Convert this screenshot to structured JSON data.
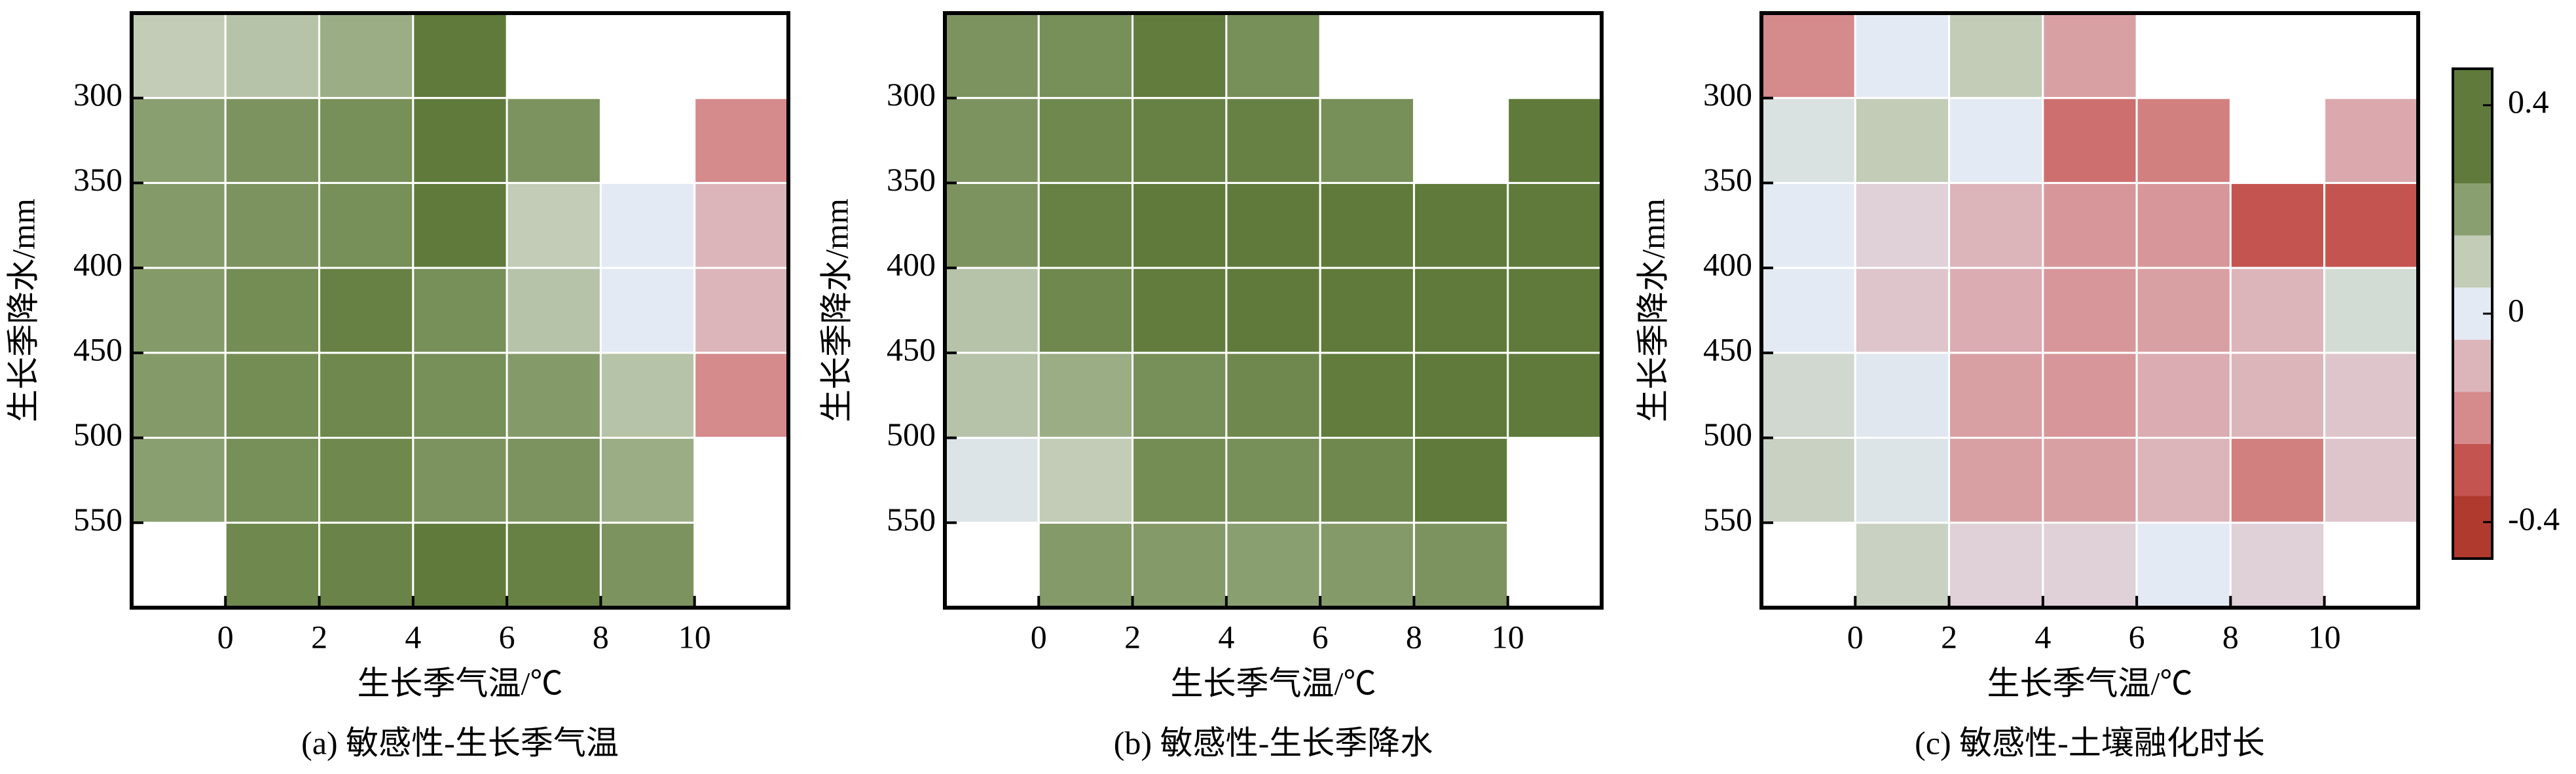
{
  "chart_data": [
    {
      "type": "heatmap",
      "title": "(a) 敏感性-生长季气温",
      "xlabel": "生长季气温/℃",
      "ylabel": "生长季降水/mm",
      "xbins": [
        -2,
        0,
        2,
        4,
        6,
        8,
        10,
        12
      ],
      "ybins": [
        250,
        300,
        350,
        400,
        450,
        500,
        550,
        600
      ],
      "xlim": [
        -2,
        12
      ],
      "ylim": [
        250,
        600
      ],
      "y_inverted": true,
      "xticks": [
        0,
        2,
        4,
        6,
        8,
        10
      ],
      "yticks": [
        300,
        350,
        400,
        450,
        500,
        550
      ],
      "values": [
        [
          0.1,
          0.12,
          0.17,
          0.4,
          null,
          null,
          null
        ],
        [
          0.2,
          0.25,
          0.27,
          0.4,
          0.25,
          null,
          -0.2
        ],
        [
          0.22,
          0.25,
          0.27,
          0.38,
          0.1,
          0.0,
          -0.1
        ],
        [
          0.22,
          0.28,
          0.33,
          0.27,
          0.12,
          0.0,
          -0.1
        ],
        [
          0.22,
          0.28,
          0.3,
          0.27,
          0.22,
          0.12,
          -0.2
        ],
        [
          0.2,
          0.27,
          0.3,
          0.25,
          0.25,
          0.17,
          null
        ],
        [
          null,
          0.3,
          0.32,
          0.38,
          0.33,
          0.25,
          null
        ]
      ]
    },
    {
      "type": "heatmap",
      "title": "(b) 敏感性-生长季降水",
      "xlabel": "生长季气温/℃",
      "ylabel": "生长季降水/mm",
      "xbins": [
        -2,
        0,
        2,
        4,
        6,
        8,
        10,
        12
      ],
      "ybins": [
        250,
        300,
        350,
        400,
        450,
        500,
        550,
        600
      ],
      "xlim": [
        -2,
        12
      ],
      "ylim": [
        250,
        600
      ],
      "y_inverted": true,
      "xticks": [
        0,
        2,
        4,
        6,
        8,
        10
      ],
      "yticks": [
        300,
        350,
        400,
        450,
        500,
        550
      ],
      "values": [
        [
          0.25,
          0.27,
          0.35,
          0.27,
          null,
          null,
          null
        ],
        [
          0.25,
          0.3,
          0.33,
          0.33,
          0.27,
          null,
          0.4
        ],
        [
          0.25,
          0.33,
          0.38,
          0.38,
          0.37,
          0.38,
          0.4
        ],
        [
          0.12,
          0.3,
          0.35,
          0.37,
          0.37,
          0.38,
          0.4
        ],
        [
          0.12,
          0.17,
          0.27,
          0.3,
          0.35,
          0.38,
          0.4
        ],
        [
          0.02,
          0.1,
          0.28,
          0.27,
          0.3,
          0.4,
          null
        ],
        [
          null,
          0.22,
          0.22,
          0.2,
          0.22,
          0.25,
          null
        ]
      ]
    },
    {
      "type": "heatmap",
      "title": "(c) 敏感性-土壤融化时长",
      "xlabel": "生长季气温/℃",
      "ylabel": "生长季降水/mm",
      "xbins": [
        -2,
        0,
        2,
        4,
        6,
        8,
        10,
        12
      ],
      "ybins": [
        250,
        300,
        350,
        400,
        450,
        500,
        550,
        600
      ],
      "xlim": [
        -2,
        12
      ],
      "ylim": [
        250,
        600
      ],
      "y_inverted": true,
      "xticks": [
        0,
        2,
        4,
        6,
        8,
        10
      ],
      "yticks": [
        300,
        350,
        400,
        450,
        500,
        550
      ],
      "values": [
        [
          -0.2,
          0.0,
          0.1,
          -0.15,
          null,
          null,
          null
        ],
        [
          0.03,
          0.1,
          0.0,
          -0.25,
          -0.22,
          null,
          -0.13
        ],
        [
          0.0,
          -0.05,
          -0.1,
          -0.17,
          -0.17,
          -0.3,
          -0.3
        ],
        [
          0.0,
          -0.07,
          -0.12,
          -0.17,
          -0.15,
          -0.1,
          0.05
        ],
        [
          0.06,
          0.01,
          -0.15,
          -0.17,
          -0.12,
          -0.1,
          -0.07
        ],
        [
          0.08,
          0.02,
          -0.15,
          -0.15,
          -0.1,
          -0.22,
          -0.07
        ],
        [
          null,
          0.08,
          -0.05,
          -0.05,
          0.0,
          -0.05,
          null
        ]
      ]
    },
    {
      "type": "colorbar",
      "clim": [
        -0.47,
        0.47
      ],
      "ticks": [
        0.4,
        0,
        -0.4
      ],
      "bounds": [
        -0.47,
        -0.35,
        -0.25,
        -0.15,
        -0.05,
        0.05,
        0.15,
        0.25,
        0.47
      ],
      "colors": [
        "#b03a2e",
        "#c4544f",
        "#d58a8c",
        "#dcb5bb",
        "#e4eaf4",
        "#c2ccb6",
        "#8a9f70",
        "#5f7a3a"
      ]
    }
  ]
}
